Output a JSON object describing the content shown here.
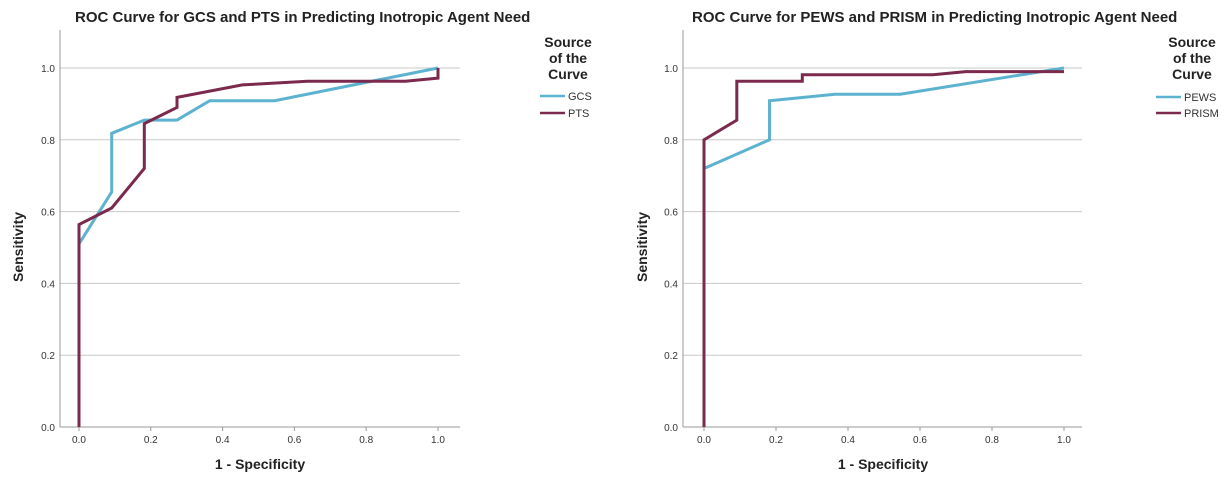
{
  "chart_data": [
    {
      "type": "line",
      "title": "ROC Curve for GCS and PTS in Predicting Inotropic Agent Need",
      "xlabel": "1 - Specificity",
      "ylabel": "Sensitivity",
      "xlim": [
        0,
        1
      ],
      "ylim": [
        0,
        1
      ],
      "x_ticks": [
        "0.0",
        "0.2",
        "0.4",
        "0.6",
        "0.8",
        "1.0"
      ],
      "y_ticks": [
        "0.0",
        "0.2",
        "0.4",
        "0.6",
        "0.8",
        "1.0"
      ],
      "grid": "horizontal",
      "legend": {
        "title": [
          "Source",
          "of the",
          "Curve"
        ],
        "position": "right"
      },
      "series": [
        {
          "name": "GCS",
          "color": "#5db3cf",
          "points": [
            [
              0,
              0.51
            ],
            [
              0.091,
              0.655
            ],
            [
              0.091,
              0.818
            ],
            [
              0.182,
              0.855
            ],
            [
              0.273,
              0.855
            ],
            [
              0.364,
              0.909
            ],
            [
              0.545,
              0.909
            ],
            [
              1.0,
              1.0
            ]
          ]
        },
        {
          "name": "PTS",
          "color": "#7b2a4d",
          "points": [
            [
              0,
              0
            ],
            [
              0,
              0.564
            ],
            [
              0.091,
              0.61
            ],
            [
              0.182,
              0.72
            ],
            [
              0.182,
              0.845
            ],
            [
              0.273,
              0.89
            ],
            [
              0.273,
              0.918
            ],
            [
              0.455,
              0.953
            ],
            [
              0.636,
              0.963
            ],
            [
              0.909,
              0.963
            ],
            [
              1.0,
              0.972
            ],
            [
              1.0,
              1.0
            ]
          ]
        }
      ]
    },
    {
      "type": "line",
      "title": "ROC Curve for PEWS and PRISM in Predicting Inotropic Agent Need",
      "xlabel": "1 - Specificity",
      "ylabel": "Sensitivity",
      "xlim": [
        0,
        1
      ],
      "ylim": [
        0,
        1
      ],
      "x_ticks": [
        "0.0",
        "0.2",
        "0.4",
        "0.6",
        "0.8",
        "1.0"
      ],
      "y_ticks": [
        "0.0",
        "0.2",
        "0.4",
        "0.6",
        "0.8",
        "1.0"
      ],
      "grid": "horizontal",
      "legend": {
        "title": [
          "Source",
          "of the",
          "Curve"
        ],
        "position": "right"
      },
      "series": [
        {
          "name": "PEWS",
          "color": "#5db3cf",
          "points": [
            [
              0,
              0.72
            ],
            [
              0.182,
              0.8
            ],
            [
              0.182,
              0.909
            ],
            [
              0.364,
              0.927
            ],
            [
              0.545,
              0.927
            ],
            [
              1.0,
              1.0
            ]
          ]
        },
        {
          "name": "PRISM",
          "color": "#7b2a4d",
          "points": [
            [
              0,
              0
            ],
            [
              0,
              0.8
            ],
            [
              0.091,
              0.855
            ],
            [
              0.091,
              0.963
            ],
            [
              0.273,
              0.963
            ],
            [
              0.273,
              0.981
            ],
            [
              0.636,
              0.981
            ],
            [
              0.727,
              0.99
            ],
            [
              1.0,
              0.99
            ]
          ]
        }
      ]
    }
  ]
}
